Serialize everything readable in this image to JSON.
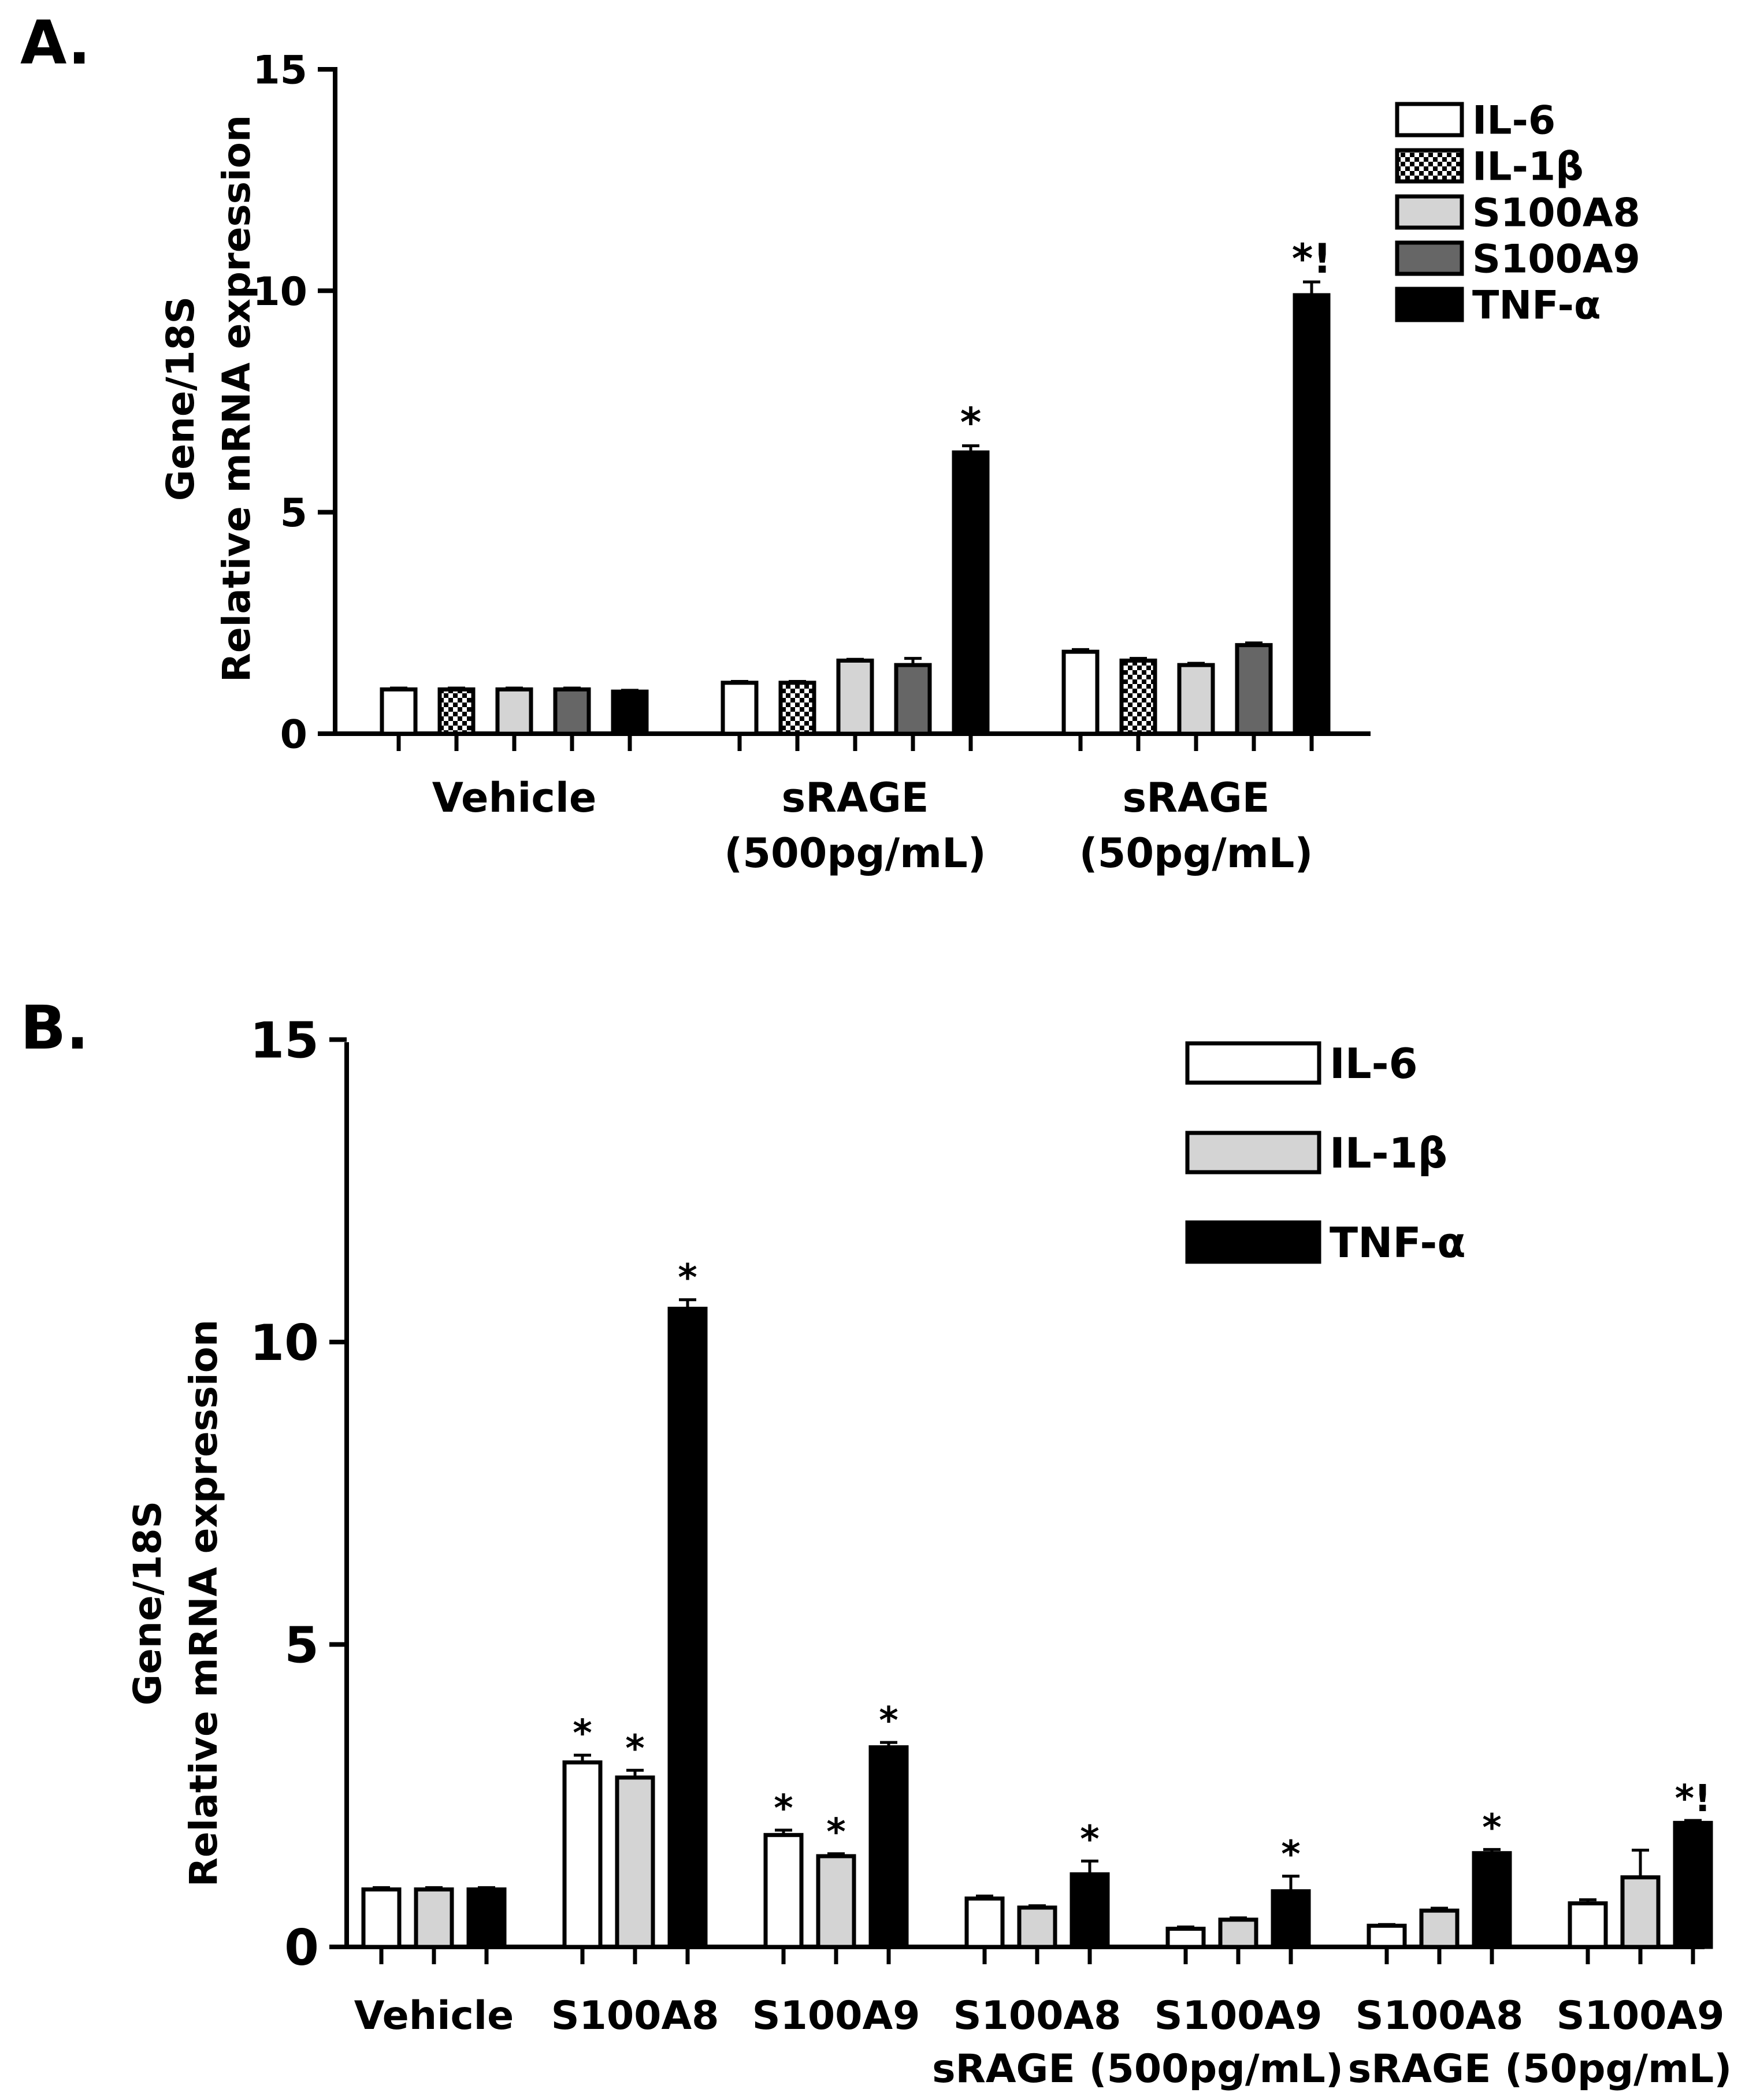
{
  "chart_data": [
    {
      "panel_label": "A.",
      "type": "bar",
      "ylabel_line1": "Gene/18S",
      "ylabel_line2": "Relative mRNA expression",
      "ylim": [
        0,
        15
      ],
      "yticks": [
        0,
        5,
        10,
        15
      ],
      "groups": [
        {
          "label": [
            "Vehicle"
          ]
        },
        {
          "label": [
            "sRAGE",
            "(500pg/mL)"
          ]
        },
        {
          "label": [
            "sRAGE",
            "(50pg/mL)"
          ]
        }
      ],
      "series": [
        {
          "name": "IL-6",
          "style": "white",
          "values": [
            1.0,
            1.15,
            1.85
          ],
          "errors": [
            0.03,
            0.03,
            0.05
          ],
          "annot": [
            "",
            "",
            ""
          ]
        },
        {
          "name": "IL-1β",
          "style": "checker",
          "values": [
            1.0,
            1.15,
            1.65
          ],
          "errors": [
            0.03,
            0.03,
            0.05
          ],
          "annot": [
            "",
            "",
            ""
          ]
        },
        {
          "name": "S100A8",
          "style": "lightgray",
          "values": [
            1.0,
            1.65,
            1.55
          ],
          "errors": [
            0.03,
            0.03,
            0.04
          ],
          "annot": [
            "",
            "",
            ""
          ]
        },
        {
          "name": "S100A9",
          "style": "darkgray",
          "values": [
            1.0,
            1.55,
            2.0
          ],
          "errors": [
            0.03,
            0.15,
            0.05
          ],
          "annot": [
            "",
            "",
            ""
          ]
        },
        {
          "name": "TNF-α",
          "style": "black",
          "values": [
            0.95,
            6.35,
            9.9
          ],
          "errors": [
            0.03,
            0.15,
            0.3
          ],
          "annot": [
            "",
            "*",
            "*!"
          ]
        }
      ]
    },
    {
      "panel_label": "B.",
      "type": "bar",
      "ylabel_line1": "Gene/18S",
      "ylabel_line2": "Relative mRNA expression",
      "ylim": [
        0,
        15
      ],
      "yticks": [
        0,
        5,
        10,
        15
      ],
      "groups": [
        {
          "label": [
            "Vehicle"
          ]
        },
        {
          "label": [
            "S100A8"
          ]
        },
        {
          "label": [
            "S100A9"
          ]
        },
        {
          "label": [
            "S100A8"
          ]
        },
        {
          "label": [
            "S100A9"
          ]
        },
        {
          "label": [
            "S100A8"
          ]
        },
        {
          "label": [
            "S100A9"
          ]
        }
      ],
      "sublabels": [
        "sRAGE (500pg/mL)",
        "sRAGE (50pg/mL)"
      ],
      "series": [
        {
          "name": "IL-6",
          "style": "white",
          "values": [
            0.95,
            3.05,
            1.85,
            0.8,
            0.3,
            0.35,
            0.72
          ],
          "errors": [
            0.03,
            0.12,
            0.08,
            0.04,
            0.03,
            0.02,
            0.06
          ],
          "annot": [
            "",
            "*",
            "*",
            "",
            "",
            "",
            ""
          ]
        },
        {
          "name": "IL-1β",
          "style": "lightgray",
          "values": [
            0.95,
            2.8,
            1.5,
            0.65,
            0.45,
            0.6,
            1.15
          ],
          "errors": [
            0.03,
            0.12,
            0.04,
            0.03,
            0.03,
            0.04,
            0.45
          ],
          "annot": [
            "",
            "*",
            "*",
            "",
            "",
            "",
            ""
          ]
        },
        {
          "name": "TNF-α",
          "style": "black",
          "values": [
            0.95,
            10.55,
            3.3,
            1.2,
            0.92,
            1.55,
            2.05
          ],
          "errors": [
            0.03,
            0.15,
            0.08,
            0.22,
            0.25,
            0.06,
            0.04
          ],
          "annot": [
            "",
            "*",
            "*",
            "*",
            "*",
            "*",
            "*!"
          ]
        }
      ]
    }
  ]
}
